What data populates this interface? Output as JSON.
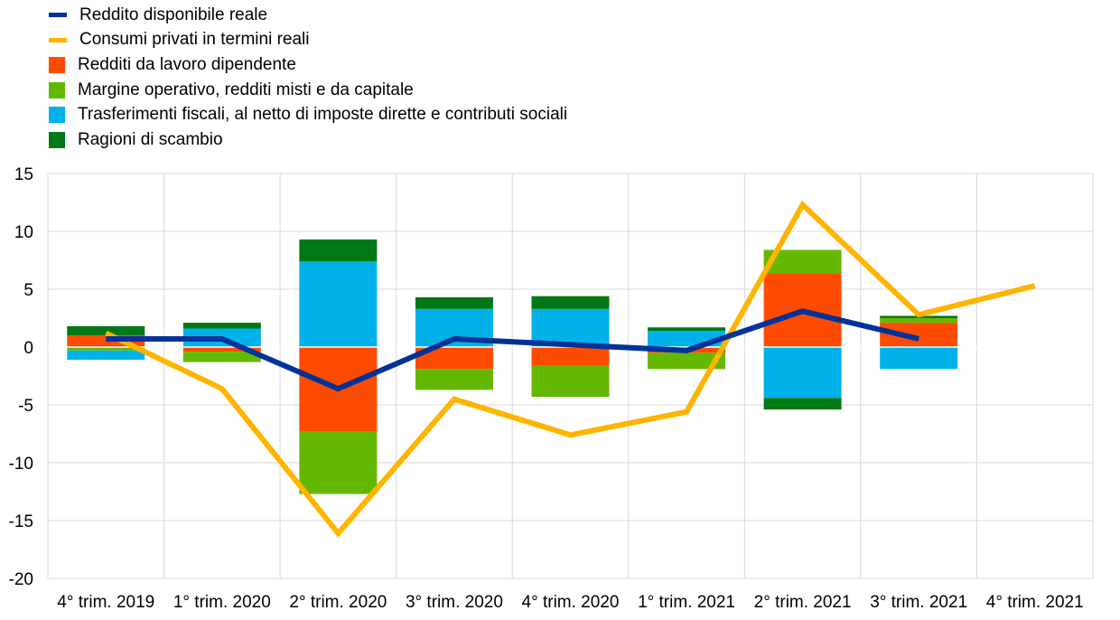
{
  "chart_data": {
    "type": "bar",
    "categories": [
      "4° trim. 2019",
      "1° trim. 2020",
      "2° trim. 2020",
      "3° trim. 2020",
      "4° trim. 2020",
      "1° trim. 2021",
      "2° trim. 2021",
      "3° trim. 2021",
      "4° trim. 2021"
    ],
    "ylim": [
      -20,
      15
    ],
    "yticks": [
      -20,
      -15,
      -10,
      -5,
      0,
      5,
      10,
      15
    ],
    "grid": true,
    "legend_position": "top-left",
    "stacked_series": [
      {
        "name": "Redditi da lavoro dipendente",
        "color": "#ff4b00",
        "values": [
          1.0,
          -0.4,
          -7.3,
          -1.9,
          -1.6,
          -0.5,
          6.4,
          2.1,
          null
        ]
      },
      {
        "name": "Margine operativo, redditi misti e da capitale",
        "color": "#65b800",
        "values": [
          -0.3,
          -0.9,
          -5.4,
          -1.8,
          -2.7,
          -1.4,
          2.0,
          0.4,
          null
        ]
      },
      {
        "name": "Trasferimenti fiscali, al netto di imposte dirette e contributi sociali",
        "color": "#00b1ea",
        "values": [
          -0.8,
          1.6,
          7.4,
          3.3,
          3.3,
          1.4,
          -4.4,
          -1.9,
          null
        ]
      },
      {
        "name": "Ragioni di scambio",
        "color": "#007816",
        "values": [
          0.8,
          0.5,
          1.9,
          1.0,
          1.1,
          0.3,
          -1.0,
          0.2,
          null
        ]
      }
    ],
    "line_series": [
      {
        "name": "Reddito disponibile reale",
        "color": "#003299",
        "values": [
          0.7,
          0.7,
          -3.6,
          0.7,
          0.2,
          -0.3,
          3.1,
          0.7,
          null
        ]
      },
      {
        "name": "Consumi privati in termini reali",
        "color": "#ffb400",
        "values": [
          1.2,
          -3.6,
          -16.1,
          -4.5,
          -7.6,
          -5.6,
          12.3,
          2.8,
          5.3
        ]
      }
    ]
  },
  "legend": [
    {
      "label": "Reddito disponibile reale",
      "kind": "line",
      "color": "#003299"
    },
    {
      "label": "Consumi privati in termini reali",
      "kind": "line",
      "color": "#ffb400"
    },
    {
      "label": "Redditi da lavoro dipendente",
      "kind": "box",
      "color": "#ff4b00"
    },
    {
      "label": "Margine operativo, redditi misti e da capitale",
      "kind": "box",
      "color": "#65b800"
    },
    {
      "label": "Trasferimenti fiscali, al netto di imposte dirette e contributi sociali",
      "kind": "box",
      "color": "#00b1ea"
    },
    {
      "label": "Ragioni di scambio",
      "kind": "box",
      "color": "#007816"
    }
  ]
}
